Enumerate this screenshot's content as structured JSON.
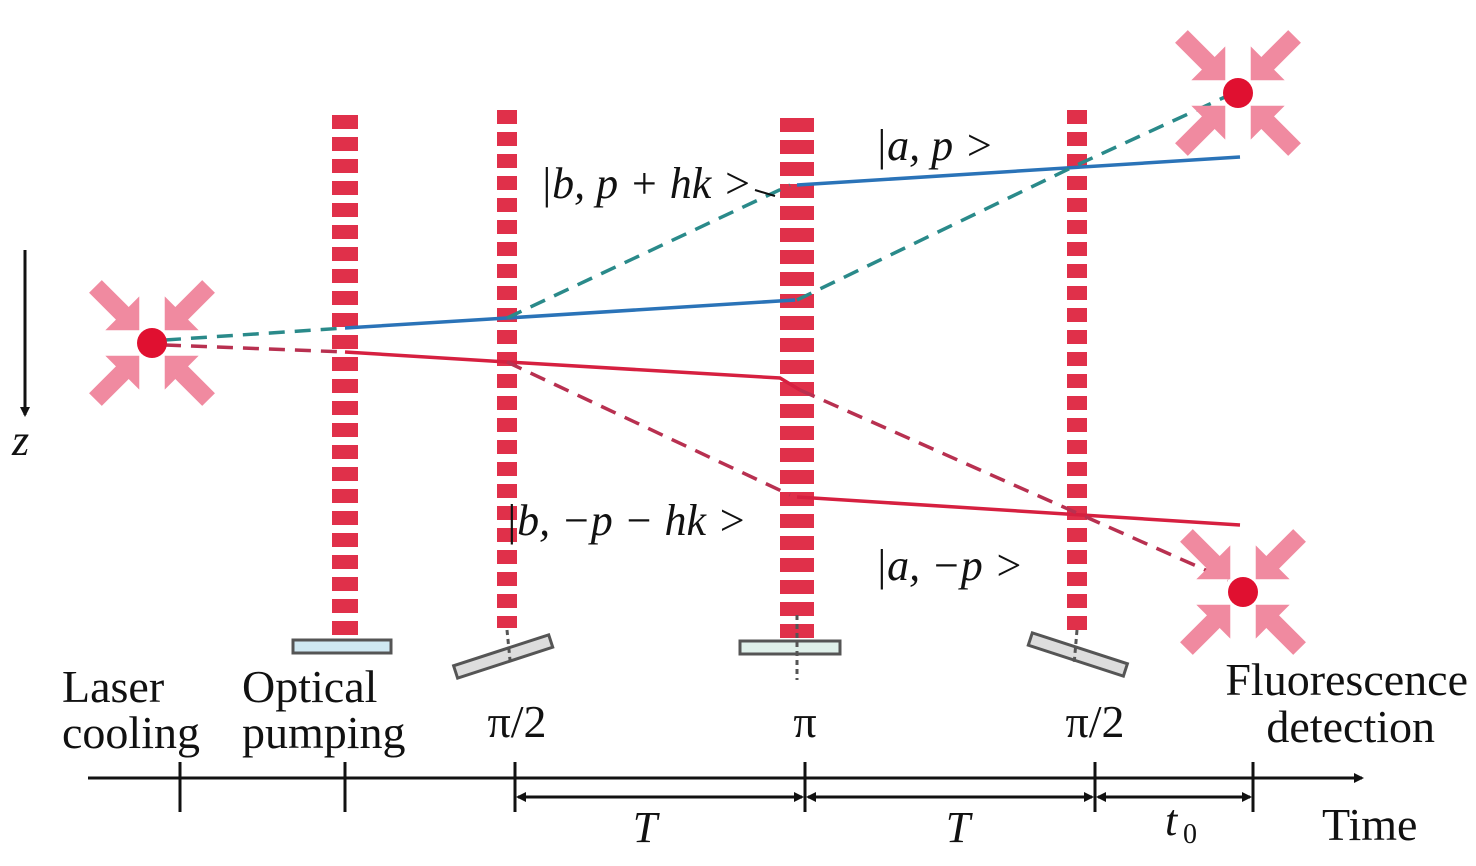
{
  "stages": [
    {
      "lines": [
        "Laser",
        "cooling"
      ]
    },
    {
      "lines": [
        "Optical",
        "pumping"
      ]
    },
    {
      "lines": [
        "Fluorescence",
        "detection"
      ]
    }
  ],
  "pulses": [
    "π/2",
    "π",
    "π/2"
  ],
  "intervals": [
    {
      "text": "T"
    },
    {
      "text": "T"
    },
    {
      "text": "t",
      "subscript": "0"
    }
  ],
  "axis": {
    "time": "Time",
    "z": "z"
  },
  "states": [
    "|b, p + hk >",
    "|a, p >",
    "|b, −p − hk >",
    "|a, −p >"
  ]
}
